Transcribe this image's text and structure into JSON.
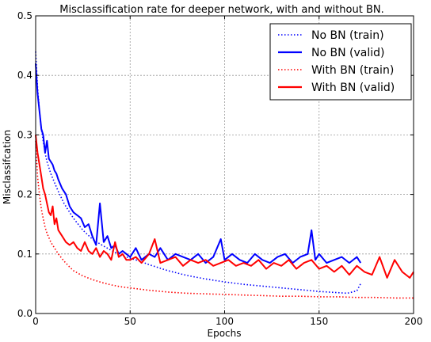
{
  "chart_data": {
    "type": "line",
    "title": "Misclassification rate for deeper network, with and without BN.",
    "xlabel": "Epochs",
    "ylabel": "Misclassifcation",
    "xlim": [
      0,
      200
    ],
    "ylim": [
      0,
      0.5
    ],
    "x_ticks": [
      0,
      50,
      100,
      150,
      200
    ],
    "y_ticks": [
      0.0,
      0.1,
      0.2,
      0.3,
      0.4,
      0.5
    ],
    "x_tick_labels": [
      "0",
      "50",
      "100",
      "150",
      "200"
    ],
    "y_tick_labels": [
      "0.0",
      "0.1",
      "0.2",
      "0.3",
      "0.4",
      "0.5"
    ],
    "grid": true,
    "legend_position": "top-right",
    "series": [
      {
        "name": "No BN (train)",
        "color": "#0000ff",
        "style": "dotted",
        "x": [
          0,
          1,
          2,
          3,
          4,
          5,
          6,
          8,
          10,
          12,
          15,
          18,
          20,
          25,
          30,
          35,
          40,
          45,
          50,
          55,
          60,
          70,
          80,
          90,
          100,
          110,
          120,
          130,
          140,
          150,
          160,
          165,
          170,
          172
        ],
        "y": [
          0.44,
          0.38,
          0.34,
          0.31,
          0.29,
          0.27,
          0.255,
          0.235,
          0.22,
          0.205,
          0.185,
          0.17,
          0.16,
          0.14,
          0.125,
          0.115,
          0.106,
          0.098,
          0.093,
          0.088,
          0.082,
          0.072,
          0.064,
          0.058,
          0.053,
          0.049,
          0.046,
          0.043,
          0.04,
          0.037,
          0.035,
          0.034,
          0.038,
          0.05
        ]
      },
      {
        "name": "No BN (valid)",
        "color": "#0000ff",
        "style": "solid",
        "x": [
          0,
          1,
          2,
          3,
          4,
          5,
          6,
          7,
          8,
          9,
          10,
          11,
          12,
          14,
          16,
          18,
          20,
          22,
          24,
          26,
          28,
          30,
          32,
          34,
          36,
          38,
          40,
          42,
          44,
          46,
          48,
          50,
          53,
          56,
          60,
          63,
          66,
          70,
          74,
          78,
          82,
          86,
          90,
          94,
          98,
          100,
          104,
          108,
          112,
          116,
          120,
          124,
          128,
          132,
          136,
          140,
          144,
          146,
          148,
          150,
          154,
          158,
          162,
          166,
          170,
          172
        ],
        "y": [
          0.42,
          0.37,
          0.34,
          0.31,
          0.3,
          0.27,
          0.29,
          0.26,
          0.255,
          0.25,
          0.24,
          0.235,
          0.225,
          0.21,
          0.2,
          0.18,
          0.17,
          0.165,
          0.16,
          0.145,
          0.15,
          0.13,
          0.115,
          0.185,
          0.12,
          0.13,
          0.11,
          0.115,
          0.1,
          0.105,
          0.1,
          0.095,
          0.11,
          0.09,
          0.1,
          0.095,
          0.11,
          0.09,
          0.1,
          0.095,
          0.09,
          0.1,
          0.085,
          0.095,
          0.125,
          0.09,
          0.1,
          0.09,
          0.085,
          0.1,
          0.09,
          0.085,
          0.095,
          0.1,
          0.085,
          0.095,
          0.1,
          0.14,
          0.09,
          0.1,
          0.085,
          0.09,
          0.095,
          0.085,
          0.095,
          0.085
        ]
      },
      {
        "name": "With BN (train)",
        "color": "#ff0000",
        "style": "dotted",
        "x": [
          0,
          1,
          2,
          3,
          4,
          5,
          6,
          8,
          10,
          12,
          15,
          18,
          20,
          25,
          30,
          35,
          40,
          45,
          50,
          55,
          60,
          70,
          80,
          90,
          100,
          110,
          120,
          130,
          140,
          150,
          160,
          170,
          180,
          190,
          200
        ],
        "y": [
          0.29,
          0.23,
          0.2,
          0.175,
          0.16,
          0.145,
          0.135,
          0.12,
          0.11,
          0.1,
          0.088,
          0.078,
          0.072,
          0.063,
          0.057,
          0.052,
          0.048,
          0.045,
          0.043,
          0.041,
          0.039,
          0.036,
          0.034,
          0.033,
          0.032,
          0.031,
          0.03,
          0.029,
          0.029,
          0.028,
          0.028,
          0.027,
          0.027,
          0.026,
          0.026
        ]
      },
      {
        "name": "With BN (valid)",
        "color": "#ff0000",
        "style": "solid",
        "x": [
          0,
          1,
          2,
          3,
          4,
          5,
          6,
          7,
          8,
          9,
          10,
          11,
          12,
          14,
          16,
          18,
          20,
          22,
          24,
          26,
          28,
          30,
          32,
          34,
          36,
          38,
          40,
          42,
          44,
          46,
          48,
          50,
          53,
          56,
          60,
          63,
          66,
          70,
          74,
          78,
          82,
          86,
          90,
          94,
          98,
          102,
          106,
          110,
          114,
          118,
          122,
          126,
          130,
          134,
          138,
          142,
          146,
          150,
          154,
          158,
          162,
          166,
          170,
          174,
          178,
          182,
          186,
          190,
          194,
          198,
          200
        ],
        "y": [
          0.3,
          0.27,
          0.25,
          0.23,
          0.21,
          0.2,
          0.185,
          0.17,
          0.165,
          0.18,
          0.15,
          0.16,
          0.14,
          0.13,
          0.12,
          0.115,
          0.12,
          0.11,
          0.105,
          0.12,
          0.105,
          0.1,
          0.11,
          0.095,
          0.105,
          0.1,
          0.09,
          0.12,
          0.095,
          0.1,
          0.09,
          0.09,
          0.095,
          0.085,
          0.1,
          0.125,
          0.085,
          0.09,
          0.095,
          0.08,
          0.09,
          0.085,
          0.09,
          0.08,
          0.085,
          0.09,
          0.08,
          0.085,
          0.08,
          0.09,
          0.075,
          0.085,
          0.08,
          0.09,
          0.075,
          0.085,
          0.09,
          0.075,
          0.08,
          0.07,
          0.08,
          0.065,
          0.08,
          0.07,
          0.065,
          0.095,
          0.06,
          0.09,
          0.07,
          0.06,
          0.07
        ]
      }
    ]
  }
}
